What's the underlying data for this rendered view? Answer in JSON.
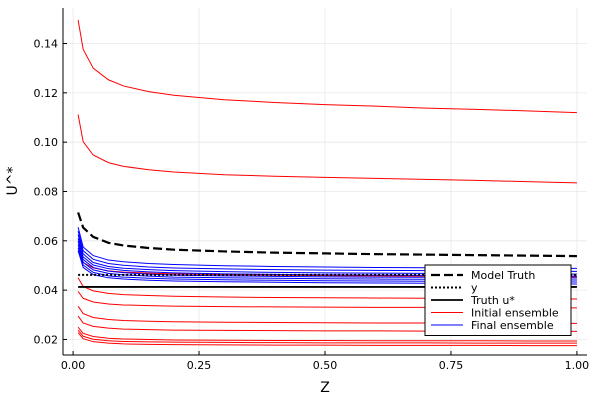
{
  "chart_data": {
    "type": "line",
    "title": "",
    "xlabel": "Z",
    "ylabel": "U^*",
    "xlim": [
      -0.02,
      1.02
    ],
    "ylim": [
      0.0137,
      0.1544
    ],
    "xticks": [
      {
        "value": 0.0,
        "label": "0.00"
      },
      {
        "value": 0.25,
        "label": "0.25"
      },
      {
        "value": 0.5,
        "label": "0.50"
      },
      {
        "value": 0.75,
        "label": "0.75"
      },
      {
        "value": 1.0,
        "label": "1.00"
      }
    ],
    "yticks": [
      {
        "value": 0.02,
        "label": "0.02"
      },
      {
        "value": 0.04,
        "label": "0.04"
      },
      {
        "value": 0.06,
        "label": "0.06"
      },
      {
        "value": 0.08,
        "label": "0.08"
      },
      {
        "value": 0.1,
        "label": "0.10"
      },
      {
        "value": 0.12,
        "label": "0.12"
      },
      {
        "value": 0.14,
        "label": "0.14"
      }
    ],
    "grid": true,
    "legend_position": "bottom-right",
    "x": [
      0.01,
      0.02,
      0.04,
      0.07,
      0.1,
      0.15,
      0.2,
      0.3,
      0.4,
      0.5,
      0.6,
      0.7,
      0.8,
      0.9,
      1.0
    ],
    "series": [
      {
        "name": "Model Truth",
        "color": "#000000",
        "style": "dashed",
        "width": 2.2,
        "values": [
          0.0715,
          0.0654,
          0.0616,
          0.0592,
          0.0581,
          0.0571,
          0.0564,
          0.0557,
          0.0552,
          0.0549,
          0.0546,
          0.0544,
          0.0542,
          0.054,
          0.0538
        ]
      },
      {
        "name": "y",
        "color": "#000000",
        "style": "dotted",
        "width": 2,
        "values": [
          0.0462,
          0.0462,
          0.0462,
          0.0462,
          0.0462,
          0.0462,
          0.0462,
          0.0462,
          0.0462,
          0.0462,
          0.0462,
          0.0462,
          0.0462,
          0.0462,
          0.0462
        ]
      },
      {
        "name": "Truth u*",
        "color": "#000000",
        "style": "solid",
        "width": 1.8,
        "values": [
          0.0413,
          0.0413,
          0.0413,
          0.0413,
          0.0413,
          0.0413,
          0.0413,
          0.0413,
          0.0413,
          0.0413,
          0.0413,
          0.0413,
          0.0413,
          0.0413,
          0.0413
        ]
      },
      {
        "name": "Initial ensemble",
        "color": "#ff0000",
        "style": "solid",
        "width": 1,
        "values": [
          0.1495,
          0.1377,
          0.13,
          0.1253,
          0.1228,
          0.1205,
          0.119,
          0.1172,
          0.1161,
          0.1152,
          0.1146,
          0.1138,
          0.1133,
          0.1127,
          0.112
        ]
      },
      {
        "name": "",
        "color": "#ff0000",
        "style": "solid",
        "width": 1,
        "values": [
          0.1112,
          0.1002,
          0.0948,
          0.0917,
          0.0902,
          0.0888,
          0.0879,
          0.0868,
          0.0862,
          0.0857,
          0.0853,
          0.0849,
          0.0845,
          0.084,
          0.0835
        ]
      },
      {
        "name": "",
        "color": "#ff0000",
        "style": "solid",
        "width": 1,
        "values": [
          0.056,
          0.0512,
          0.049,
          0.0478,
          0.0473,
          0.0469,
          0.0466,
          0.0463,
          0.0461,
          0.0459,
          0.0458,
          0.0457,
          0.0456,
          0.0455,
          0.0454
        ]
      },
      {
        "name": "",
        "color": "#ff0000",
        "style": "solid",
        "width": 1,
        "values": [
          0.045,
          0.0415,
          0.0397,
          0.0387,
          0.0382,
          0.0378,
          0.0375,
          0.0372,
          0.037,
          0.0369,
          0.0368,
          0.0367,
          0.0366,
          0.0365,
          0.0364
        ]
      },
      {
        "name": "",
        "color": "#ff0000",
        "style": "solid",
        "width": 1,
        "values": [
          0.0395,
          0.0367,
          0.0352,
          0.0344,
          0.034,
          0.0337,
          0.0335,
          0.0333,
          0.0332,
          0.0331,
          0.033,
          0.033,
          0.0329,
          0.0329,
          0.0328
        ]
      },
      {
        "name": "",
        "color": "#ff0000",
        "style": "solid",
        "width": 1,
        "values": [
          0.0335,
          0.0305,
          0.0289,
          0.0281,
          0.0277,
          0.0274,
          0.0272,
          0.027,
          0.0269,
          0.0268,
          0.0267,
          0.0267,
          0.0266,
          0.0266,
          0.0265
        ]
      },
      {
        "name": "",
        "color": "#ff0000",
        "style": "solid",
        "width": 1,
        "values": [
          0.0295,
          0.0267,
          0.0253,
          0.0246,
          0.0242,
          0.024,
          0.0238,
          0.0237,
          0.0236,
          0.0235,
          0.0235,
          0.0234,
          0.0234,
          0.0234,
          0.0233
        ]
      },
      {
        "name": "",
        "color": "#ff0000",
        "style": "solid",
        "width": 1,
        "values": [
          0.025,
          0.0225,
          0.0212,
          0.0205,
          0.0202,
          0.02,
          0.0198,
          0.0197,
          0.0196,
          0.0196,
          0.0195,
          0.0195,
          0.0195,
          0.0194,
          0.0194
        ]
      },
      {
        "name": "",
        "color": "#ff0000",
        "style": "solid",
        "width": 1,
        "values": [
          0.0238,
          0.0213,
          0.0201,
          0.0195,
          0.0192,
          0.019,
          0.0189,
          0.0188,
          0.0187,
          0.0186,
          0.0186,
          0.0186,
          0.0185,
          0.0185,
          0.0185
        ]
      },
      {
        "name": "",
        "color": "#ff0000",
        "style": "solid",
        "width": 1,
        "values": [
          0.0228,
          0.0203,
          0.0191,
          0.0185,
          0.0182,
          0.018,
          0.0179,
          0.0178,
          0.0177,
          0.0177,
          0.0176,
          0.0176,
          0.0176,
          0.0175,
          0.0175
        ]
      },
      {
        "name": "Final ensemble",
        "color": "#0000ff",
        "style": "solid",
        "width": 1,
        "values": [
          0.0655,
          0.0575,
          0.054,
          0.0522,
          0.0515,
          0.0508,
          0.0504,
          0.0499,
          0.0496,
          0.0494,
          0.0492,
          0.0491,
          0.049,
          0.0489,
          0.0488
        ]
      },
      {
        "name": "",
        "color": "#0000ff",
        "style": "solid",
        "width": 1,
        "values": [
          0.064,
          0.056,
          0.0525,
          0.0508,
          0.0501,
          0.0494,
          0.049,
          0.0486,
          0.0483,
          0.0481,
          0.048,
          0.0479,
          0.0478,
          0.0477,
          0.0476
        ]
      },
      {
        "name": "",
        "color": "#0000ff",
        "style": "solid",
        "width": 1,
        "values": [
          0.0625,
          0.0547,
          0.0512,
          0.0496,
          0.0489,
          0.0483,
          0.0479,
          0.0475,
          0.0472,
          0.047,
          0.0469,
          0.0468,
          0.0467,
          0.0466,
          0.0465
        ]
      },
      {
        "name": "",
        "color": "#0000ff",
        "style": "solid",
        "width": 1,
        "values": [
          0.061,
          0.0535,
          0.0502,
          0.0487,
          0.048,
          0.0474,
          0.047,
          0.0466,
          0.0464,
          0.0462,
          0.0461,
          0.046,
          0.0459,
          0.0458,
          0.0457
        ]
      },
      {
        "name": "",
        "color": "#0000ff",
        "style": "solid",
        "width": 1,
        "values": [
          0.0598,
          0.0524,
          0.0492,
          0.0477,
          0.0471,
          0.0465,
          0.0461,
          0.0458,
          0.0456,
          0.0454,
          0.0453,
          0.0452,
          0.0451,
          0.045,
          0.0449
        ]
      },
      {
        "name": "",
        "color": "#0000ff",
        "style": "solid",
        "width": 1,
        "values": [
          0.0585,
          0.0513,
          0.0482,
          0.0468,
          0.0462,
          0.0457,
          0.0453,
          0.045,
          0.0448,
          0.0446,
          0.0445,
          0.0444,
          0.0443,
          0.0442,
          0.0441
        ]
      },
      {
        "name": "",
        "color": "#0000ff",
        "style": "solid",
        "width": 1,
        "values": [
          0.0572,
          0.0502,
          0.0472,
          0.0458,
          0.0453,
          0.0448,
          0.0445,
          0.0442,
          0.044,
          0.0438,
          0.0437,
          0.0436,
          0.0435,
          0.0434,
          0.0433
        ]
      },
      {
        "name": "",
        "color": "#0000ff",
        "style": "solid",
        "width": 1,
        "values": [
          0.056,
          0.0492,
          0.0463,
          0.045,
          0.0445,
          0.044,
          0.0437,
          0.0434,
          0.0432,
          0.043,
          0.0429,
          0.0428,
          0.0427,
          0.0426,
          0.0425
        ]
      }
    ]
  }
}
